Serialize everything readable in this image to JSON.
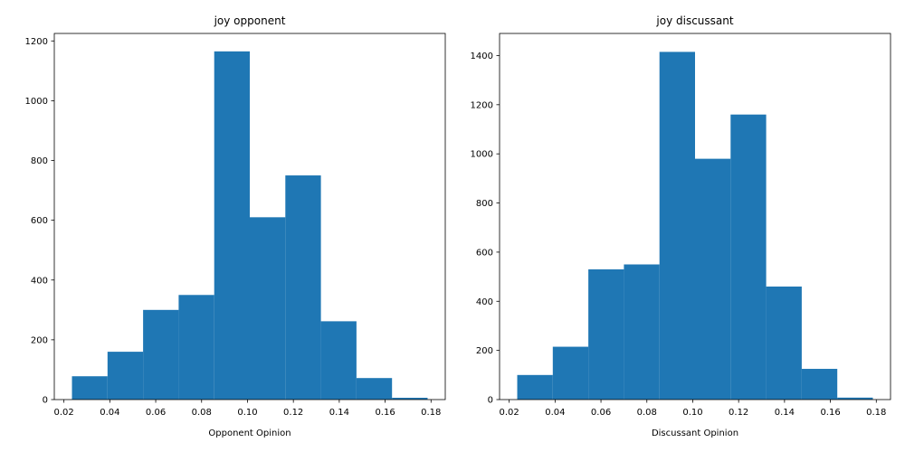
{
  "chart_data": [
    {
      "type": "bar",
      "title": "joy opponent",
      "xlabel": "Opponent Opinion",
      "ylabel": "",
      "bin_edges": [
        0.0235,
        0.039,
        0.0545,
        0.07,
        0.0855,
        0.101,
        0.1165,
        0.132,
        0.1475,
        0.163,
        0.1785
      ],
      "values": [
        78,
        160,
        300,
        350,
        1165,
        610,
        750,
        262,
        72,
        6
      ],
      "xlim": [
        0.0158,
        0.1862
      ],
      "ylim": [
        0,
        1225
      ],
      "xticks": [
        "0.02",
        "0.04",
        "0.06",
        "0.08",
        "0.10",
        "0.12",
        "0.14",
        "0.16",
        "0.18"
      ],
      "xtick_values": [
        0.02,
        0.04,
        0.06,
        0.08,
        0.1,
        0.12,
        0.14,
        0.16,
        0.18
      ],
      "yticks": [
        "0",
        "200",
        "400",
        "600",
        "800",
        "1000",
        "1200"
      ],
      "ytick_values": [
        0,
        200,
        400,
        600,
        800,
        1000,
        1200
      ],
      "color": "#1f77b4",
      "grid": false
    },
    {
      "type": "bar",
      "title": "joy discussant",
      "xlabel": "Discussant Opinion",
      "ylabel": "",
      "bin_edges": [
        0.0235,
        0.039,
        0.0545,
        0.07,
        0.0855,
        0.101,
        0.1165,
        0.132,
        0.1475,
        0.163,
        0.1785
      ],
      "values": [
        100,
        215,
        530,
        550,
        1415,
        980,
        1160,
        460,
        125,
        8
      ],
      "xlim": [
        0.0158,
        0.1862
      ],
      "ylim": [
        0,
        1490
      ],
      "xticks": [
        "0.02",
        "0.04",
        "0.06",
        "0.08",
        "0.10",
        "0.12",
        "0.14",
        "0.16",
        "0.18"
      ],
      "xtick_values": [
        0.02,
        0.04,
        0.06,
        0.08,
        0.1,
        0.12,
        0.14,
        0.16,
        0.18
      ],
      "yticks": [
        "0",
        "200",
        "400",
        "600",
        "800",
        "1000",
        "1200",
        "1400"
      ],
      "ytick_values": [
        0,
        200,
        400,
        600,
        800,
        1000,
        1200,
        1400
      ],
      "color": "#1f77b4",
      "grid": false
    }
  ]
}
